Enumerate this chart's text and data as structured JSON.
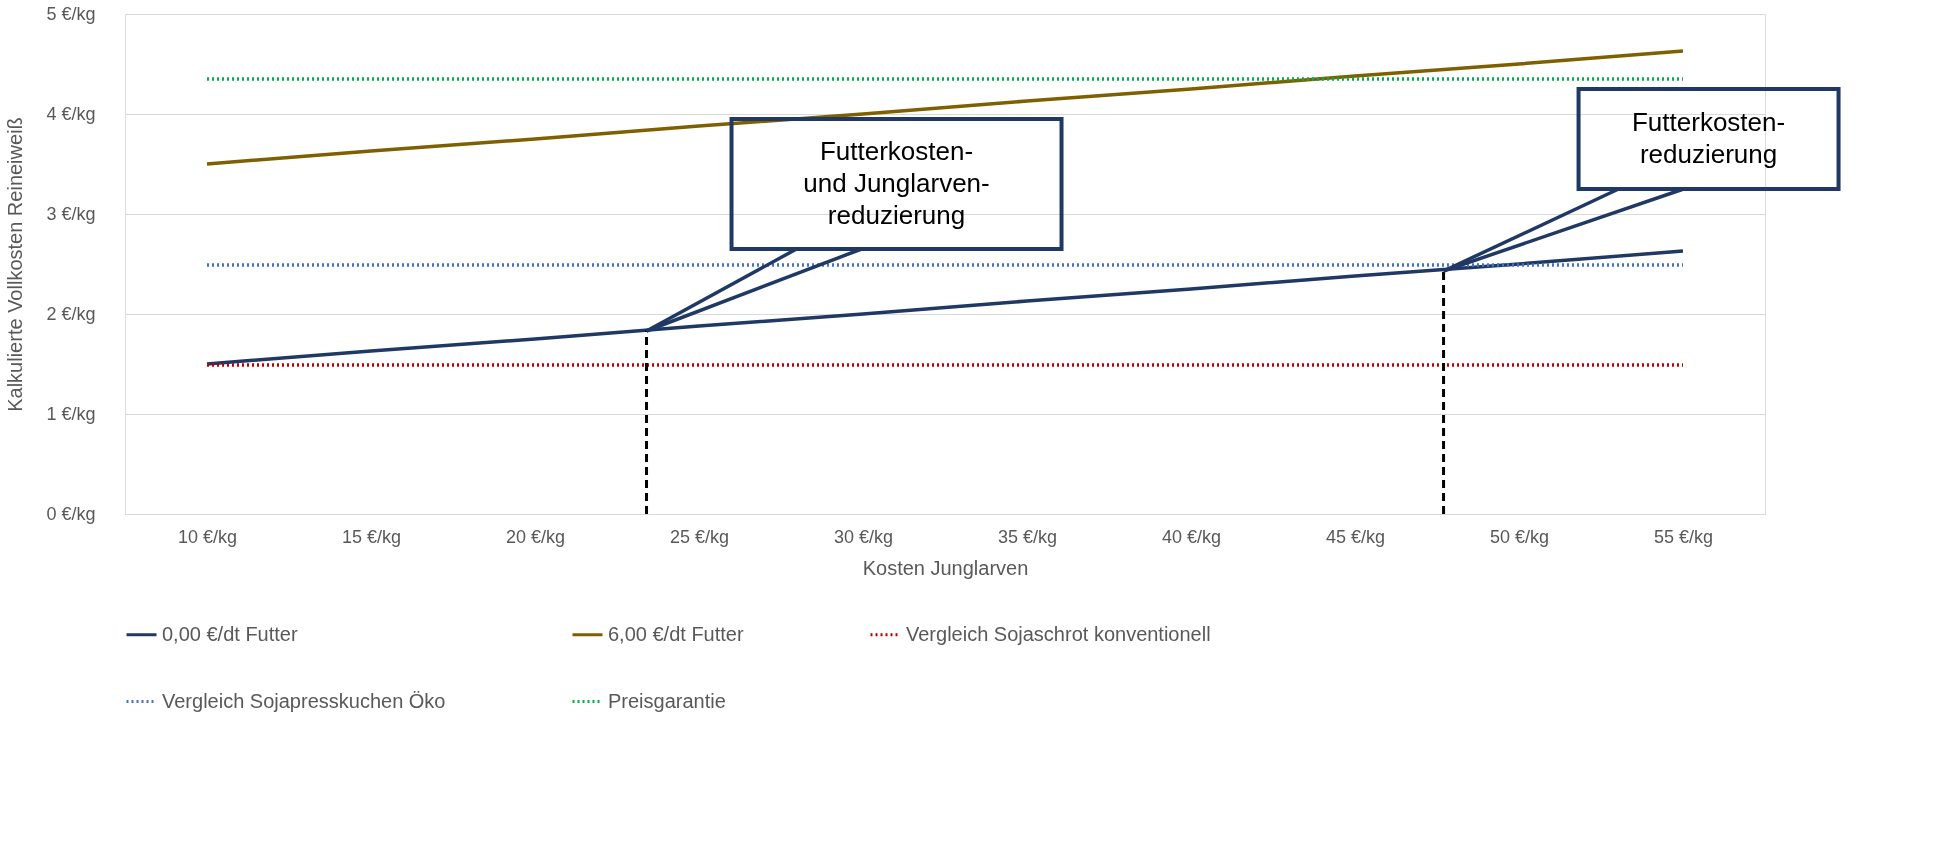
{
  "chart_data": {
    "type": "line",
    "xlabel": "Kosten Junglarven",
    "ylabel": "Kalkulierte Vollkosten Reineiweiß",
    "x": [
      10,
      15,
      20,
      25,
      30,
      35,
      40,
      45,
      50,
      55
    ],
    "xlim": [
      7.5,
      57.5
    ],
    "xticks": [
      {
        "value": 10,
        "label": "10 €/kg"
      },
      {
        "value": 15,
        "label": "15 €/kg"
      },
      {
        "value": 20,
        "label": "20 €/kg"
      },
      {
        "value": 25,
        "label": "25 €/kg"
      },
      {
        "value": 30,
        "label": "30 €/kg"
      },
      {
        "value": 35,
        "label": "35 €/kg"
      },
      {
        "value": 40,
        "label": "40 €/kg"
      },
      {
        "value": 45,
        "label": "45 €/kg"
      },
      {
        "value": 50,
        "label": "50 €/kg"
      },
      {
        "value": 55,
        "label": "55 €/kg"
      }
    ],
    "ylim": [
      0,
      5
    ],
    "yticks": [
      {
        "value": 0,
        "label": "0 €/kg"
      },
      {
        "value": 1,
        "label": "1 €/kg"
      },
      {
        "value": 2,
        "label": "2 €/kg"
      },
      {
        "value": 3,
        "label": "3 €/kg"
      },
      {
        "value": 4,
        "label": "4 €/kg"
      },
      {
        "value": 5,
        "label": "5 €/kg"
      }
    ],
    "series": [
      {
        "name": "0,00 €/dt Futter",
        "color": "#1f3864",
        "line_style": "solid",
        "values": [
          1.5,
          1.63,
          1.75,
          1.88,
          2.0,
          2.13,
          2.25,
          2.38,
          2.5,
          2.63
        ]
      },
      {
        "name": "6,00 €/dt Futter",
        "color": "#7f6000",
        "line_style": "solid",
        "values": [
          3.5,
          3.63,
          3.75,
          3.88,
          4.0,
          4.13,
          4.25,
          4.38,
          4.5,
          4.63
        ]
      },
      {
        "name": "Vergleich Sojaschrot konventionell",
        "color": "#c00000",
        "line_style": "dotted",
        "values": [
          1.49,
          1.49,
          1.49,
          1.49,
          1.49,
          1.49,
          1.49,
          1.49,
          1.49,
          1.49
        ]
      },
      {
        "name": "Vergleich Sojapresskuchen Öko",
        "color": "#4472c4",
        "line_style": "dotted",
        "values": [
          2.49,
          2.49,
          2.49,
          2.49,
          2.49,
          2.49,
          2.49,
          2.49,
          2.49,
          2.49
        ]
      },
      {
        "name": "Preisgarantie",
        "color": "#00b050",
        "line_style": "dotted",
        "values": [
          4.35,
          4.35,
          4.35,
          4.35,
          4.35,
          4.35,
          4.35,
          4.35,
          4.35,
          4.35
        ]
      }
    ],
    "annotations": [
      {
        "text": "Futterkosten-\nund Junglarven-\nreduzierung",
        "x": 23.4,
        "y": 1.83
      },
      {
        "text": "Futterkosten-\nreduzierung",
        "x": 47.7,
        "y": 2.43
      }
    ],
    "ref_lines": [
      {
        "axis": "x",
        "value": 23.4,
        "color": "#000000",
        "line_style": "dashed"
      },
      {
        "axis": "x",
        "value": 47.7,
        "color": "#000000",
        "line_style": "dashed"
      }
    ],
    "grid": "y",
    "legend": "bottom",
    "marker": "none"
  }
}
